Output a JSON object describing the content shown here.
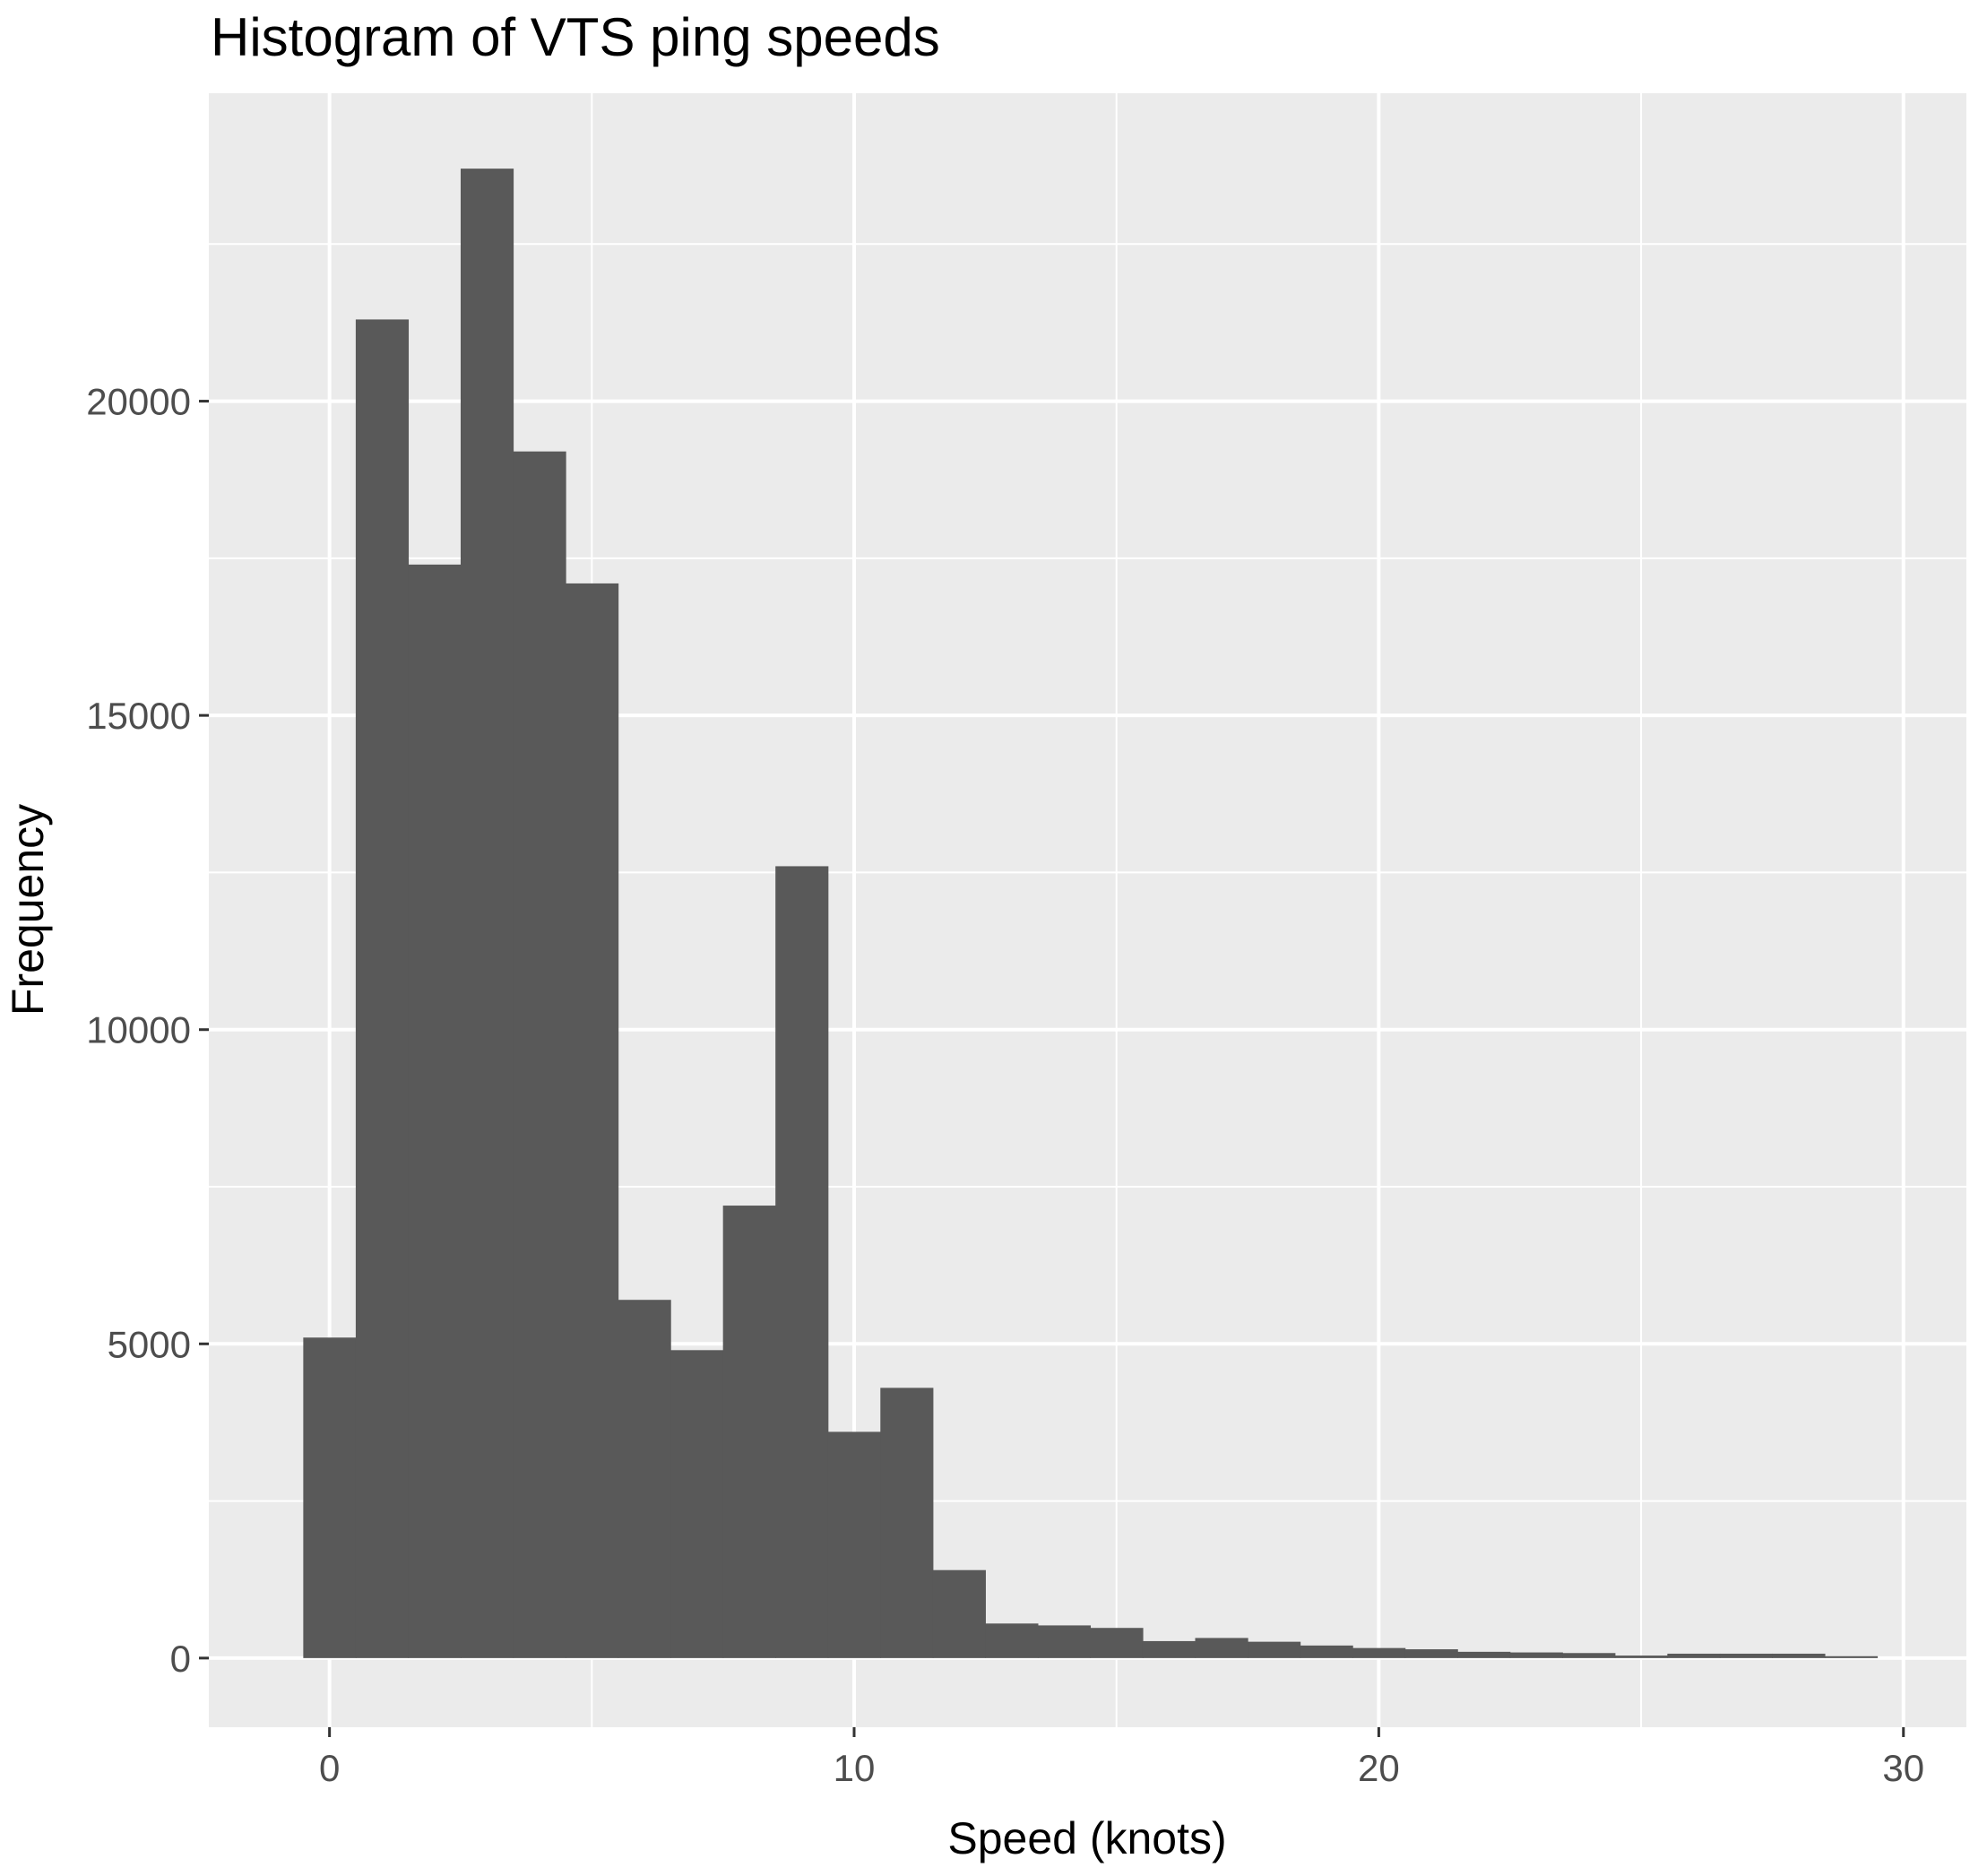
{
  "chart_data": {
    "type": "bar",
    "title": "Histogram of VTS ping speeds",
    "xlabel": "Speed (knots)",
    "ylabel": "Frequency",
    "bin_width": 1,
    "x_bin_centers": [
      0,
      1,
      2,
      3,
      4,
      5,
      6,
      7,
      8,
      9,
      10,
      11,
      12,
      13,
      14,
      15,
      16,
      17,
      18,
      19,
      20,
      21,
      22,
      23,
      24,
      25,
      26,
      27,
      28,
      29
    ],
    "values": [
      5100,
      21300,
      17400,
      23700,
      19200,
      17100,
      5700,
      4900,
      7200,
      12600,
      3600,
      4300,
      1400,
      550,
      520,
      480,
      270,
      320,
      260,
      200,
      160,
      140,
      100,
      90,
      80,
      40,
      70,
      70,
      70,
      30
    ],
    "xlim": [
      -2.3,
      31.2
    ],
    "ylim": [
      -1100,
      24900
    ],
    "x_ticks": [
      0,
      10,
      20,
      30
    ],
    "x_tick_labels": [
      "0",
      "10",
      "20",
      "30"
    ],
    "y_ticks": [
      0,
      5000,
      10000,
      15000,
      20000
    ],
    "y_tick_labels": [
      "0",
      "5000",
      "10000",
      "15000",
      "20000"
    ],
    "grid": true,
    "panel_color": "#ebebeb",
    "bar_color": "#595959",
    "grid_color": "#ffffff"
  }
}
